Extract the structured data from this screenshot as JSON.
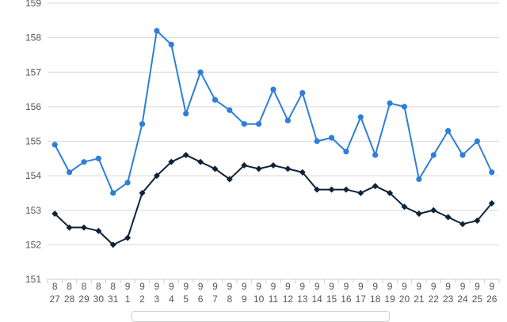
{
  "chart_data": {
    "type": "line",
    "title": "",
    "xlabel": "",
    "ylabel": "",
    "ylim": [
      151,
      159
    ],
    "yticks": [
      "151",
      "152",
      "153",
      "154",
      "155",
      "156",
      "157",
      "158",
      "159"
    ],
    "grid": true,
    "categories": [
      {
        "month": "8",
        "day": "27"
      },
      {
        "month": "8",
        "day": "28"
      },
      {
        "month": "8",
        "day": "29"
      },
      {
        "month": "8",
        "day": "30"
      },
      {
        "month": "8",
        "day": "31"
      },
      {
        "month": "9",
        "day": "1"
      },
      {
        "month": "9",
        "day": "2"
      },
      {
        "month": "9",
        "day": "3"
      },
      {
        "month": "9",
        "day": "4"
      },
      {
        "month": "9",
        "day": "5"
      },
      {
        "month": "9",
        "day": "6"
      },
      {
        "month": "9",
        "day": "7"
      },
      {
        "month": "9",
        "day": "8"
      },
      {
        "month": "9",
        "day": "9"
      },
      {
        "month": "9",
        "day": "10"
      },
      {
        "month": "9",
        "day": "11"
      },
      {
        "month": "9",
        "day": "12"
      },
      {
        "month": "9",
        "day": "13"
      },
      {
        "month": "9",
        "day": "14"
      },
      {
        "month": "9",
        "day": "15"
      },
      {
        "month": "9",
        "day": "16"
      },
      {
        "month": "9",
        "day": "17"
      },
      {
        "month": "9",
        "day": "18"
      },
      {
        "month": "9",
        "day": "19"
      },
      {
        "month": "9",
        "day": "20"
      },
      {
        "month": "9",
        "day": "21"
      },
      {
        "month": "9",
        "day": "22"
      },
      {
        "month": "9",
        "day": "23"
      },
      {
        "month": "9",
        "day": "24"
      },
      {
        "month": "9",
        "day": "25"
      },
      {
        "month": "9",
        "day": "26"
      }
    ],
    "series": [
      {
        "color": "#2f7ed8",
        "marker": "circle",
        "values": [
          154.9,
          154.1,
          154.4,
          154.5,
          153.5,
          153.8,
          155.5,
          158.2,
          157.8,
          155.8,
          157.0,
          156.2,
          155.9,
          155.5,
          155.5,
          156.5,
          155.6,
          156.4,
          155.0,
          155.1,
          154.7,
          155.7,
          154.6,
          156.1,
          156.0,
          153.9,
          154.6,
          155.3,
          154.6,
          155.0,
          154.1
        ]
      },
      {
        "color": "#0d233a",
        "marker": "diamond",
        "values": [
          152.9,
          152.5,
          152.5,
          152.4,
          152.0,
          152.2,
          153.5,
          154.0,
          154.4,
          154.6,
          154.4,
          154.2,
          153.9,
          154.3,
          154.2,
          154.3,
          154.2,
          154.1,
          153.6,
          153.6,
          153.6,
          153.5,
          153.7,
          153.5,
          153.1,
          152.9,
          153.0,
          152.8,
          152.6,
          152.7,
          153.2
        ]
      }
    ]
  }
}
